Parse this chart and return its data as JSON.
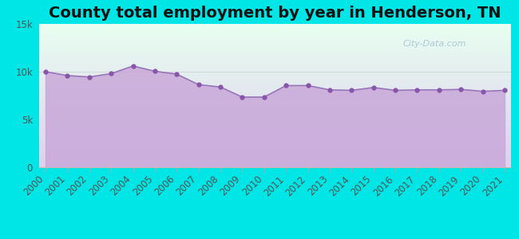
{
  "title": "County total employment by year in Henderson, TN",
  "years": [
    2000,
    2001,
    2002,
    2003,
    2004,
    2005,
    2006,
    2007,
    2008,
    2009,
    2010,
    2011,
    2012,
    2013,
    2014,
    2015,
    2016,
    2017,
    2018,
    2019,
    2020,
    2021
  ],
  "values": [
    10000,
    9600,
    9450,
    9800,
    10600,
    10050,
    9750,
    8650,
    8400,
    7350,
    7350,
    8550,
    8550,
    8100,
    8050,
    8350,
    8050,
    8100,
    8100,
    8150,
    7950,
    8050
  ],
  "ylim": [
    0,
    15000
  ],
  "yticks": [
    0,
    5000,
    10000,
    15000
  ],
  "ytick_labels": [
    "0",
    "5k",
    "10k",
    "15k"
  ],
  "fill_color": "#c9a8d9",
  "fill_alpha": 0.85,
  "line_color": "#9977bb",
  "line_width": 1.2,
  "marker_color": "#8855aa",
  "marker_size": 3.5,
  "bg_outer": "#00e5e5",
  "bg_plot_top": "#e8fef0",
  "bg_plot_bottom": "#ddd0ee",
  "watermark": "City-Data.com",
  "title_fontsize": 14,
  "tick_fontsize": 8.5,
  "title_color": "#111111"
}
